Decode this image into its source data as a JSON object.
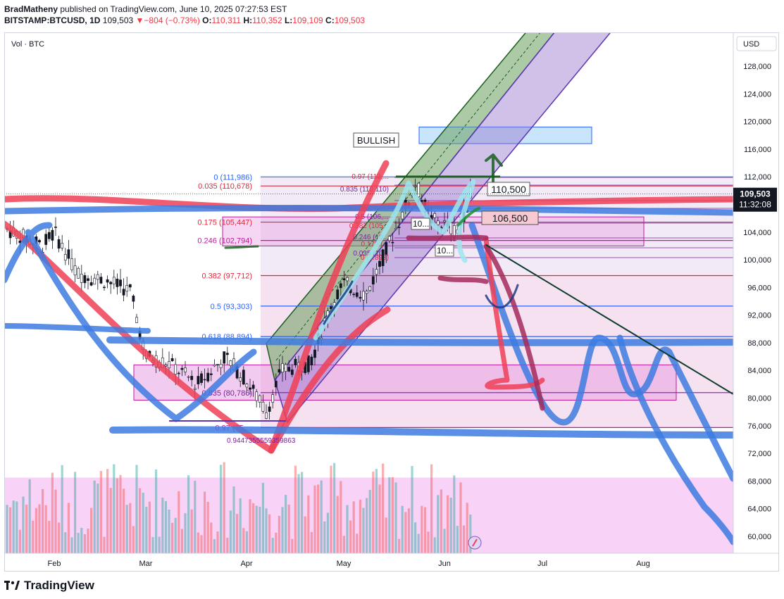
{
  "header": {
    "publisher": "BradMatheny",
    "published_text": "published on TradingView.com, June 10, 2025 07:27:53 EST",
    "symbol": "BITSTAMP:BTCUSD, 1D",
    "last": "109,503",
    "change": "−804 (−0.73%)",
    "o_label": "O:",
    "o_value": "110,311",
    "h_label": "H:",
    "h_value": "110,352",
    "l_label": "L:",
    "l_value": "109,109",
    "c_label": "C:",
    "c_value": "109,503"
  },
  "footer": {
    "brand": "TradingView"
  },
  "colors": {
    "up": "#26a69a",
    "down": "#ef5350",
    "fib_red": "#e0283a",
    "fib_blue": "#2962ff"
  },
  "chart_data": {
    "type": "candlestick",
    "title": "BITSTAMP:BTCUSD, 1D",
    "currency_label": "USD",
    "volume_label": "Vol · BTC",
    "y_ticks": [
      128000,
      124000,
      120000,
      116000,
      112000,
      108000,
      104000,
      100000,
      96000,
      92000,
      88000,
      84000,
      80000,
      76000,
      72000,
      68000,
      64000,
      60000
    ],
    "ylim": [
      57500,
      132000
    ],
    "x_ticks": [
      "Feb",
      "Mar",
      "Apr",
      "May",
      "Jun",
      "Jul",
      "Aug"
    ],
    "last_price_label": "109,503",
    "countdown_label": "11:32:08",
    "fib_levels": [
      {
        "label": "0 (111,986)",
        "price": 111986,
        "color": "#2962ff"
      },
      {
        "label": "0.035 (110,678)",
        "price": 110678,
        "color": "#e0283a"
      },
      {
        "label": "0.175 (105,447)",
        "price": 105447,
        "color": "#e0283a"
      },
      {
        "label": "0.246 (102,794)",
        "price": 102794,
        "color": "#c2189b"
      },
      {
        "label": "0.382 (97,712)",
        "price": 97712,
        "color": "#e0283a"
      },
      {
        "label": "0.5 (93,303)",
        "price": 93303,
        "color": "#2962ff"
      },
      {
        "label": "0.618 (88,894)",
        "price": 88894,
        "color": "#2962ff"
      },
      {
        "label": "0.835 (80,786)",
        "price": 80786,
        "color": "#7b1fa2"
      },
      {
        "label": "0.97 (75,...",
        "price": 75742,
        "color": "#c2189b"
      }
    ],
    "fib2_labels": [
      "0.97 (112,...",
      "0.835 (110,110)",
      "0.618 (107,6...",
      "0.5 (106,...",
      "0.382 (105...",
      "0.246 (10...",
      "0.175 (...",
      "0.035 (10...",
      "0 (...898)"
    ],
    "annotations": {
      "bullish": "BULLISH",
      "target_upper": "110,500",
      "target_lower": "106,500",
      "small_1": "10...",
      "small_2": "10...",
      "overlap": "0.9447355559359863"
    },
    "series": [
      {
        "name": "BTCUSD",
        "x": [
          "Feb",
          "Mar",
          "Apr",
          "May",
          "Jun"
        ],
        "close": [
          104500,
          86000,
          82500,
          96500,
          109503
        ]
      }
    ],
    "volume": {
      "label": "Vol · BTC"
    }
  }
}
